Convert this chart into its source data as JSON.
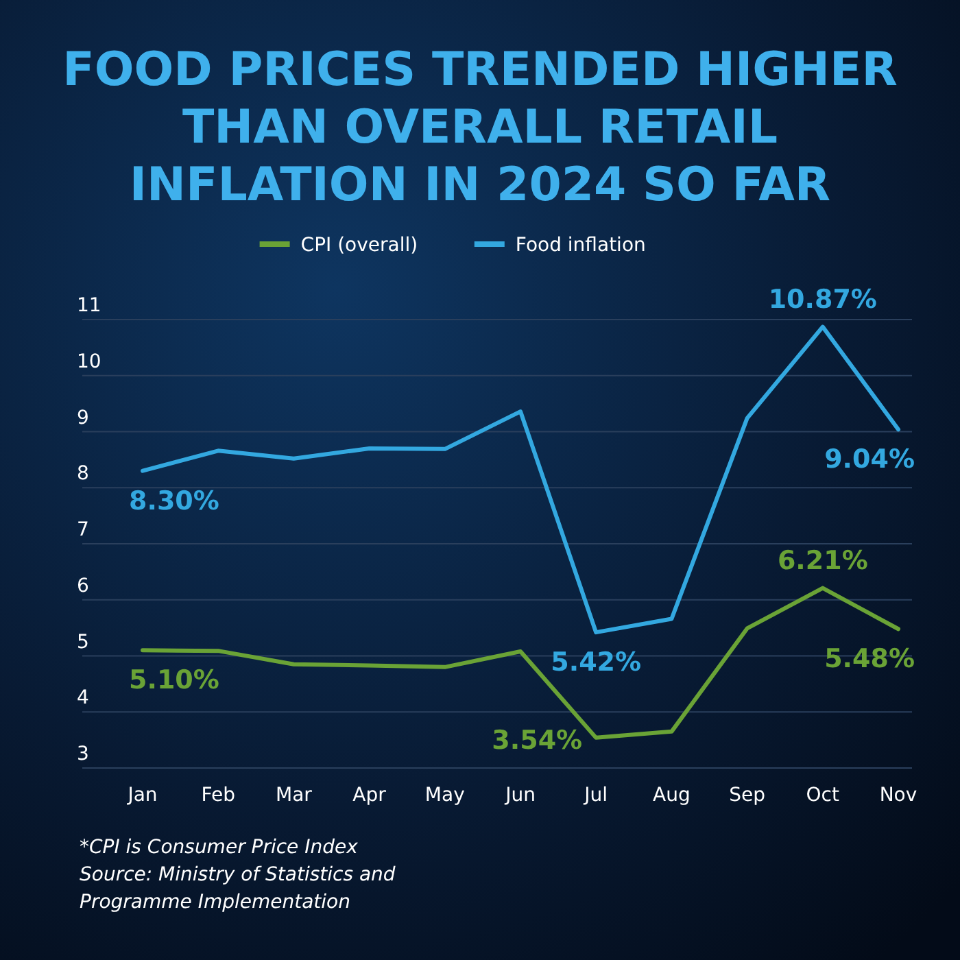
{
  "chart_data": {
    "type": "line",
    "title": "FOOD PRICES TRENDED HIGHER THAN OVERALL RETAIL INFLATION IN 2024 SO FAR",
    "categories": [
      "Jan",
      "Feb",
      "Mar",
      "Apr",
      "May",
      "Jun",
      "Jul",
      "Aug",
      "Sep",
      "Oct",
      "Nov"
    ],
    "series": [
      {
        "name": "CPI (overall)",
        "color": "#6aa336",
        "values": [
          5.1,
          5.09,
          4.85,
          4.83,
          4.8,
          5.08,
          3.54,
          3.65,
          5.49,
          6.21,
          5.48
        ],
        "value_labels": [
          "5.10%",
          null,
          null,
          null,
          null,
          null,
          "3.54%",
          null,
          null,
          "6.21%",
          "5.48%"
        ]
      },
      {
        "name": "Food inflation",
        "color": "#33a8e0",
        "values": [
          8.3,
          8.66,
          8.52,
          8.7,
          8.69,
          9.36,
          5.42,
          5.66,
          9.24,
          10.87,
          9.04
        ],
        "value_labels": [
          "8.30%",
          null,
          null,
          null,
          null,
          null,
          "5.42%",
          null,
          null,
          "10.87%",
          "9.04%"
        ]
      }
    ],
    "ylim": [
      3,
      11
    ],
    "yticks": [
      3,
      4,
      5,
      6,
      7,
      8,
      9,
      10,
      11
    ],
    "grid": "y",
    "legend": "top",
    "marker": "none",
    "line_style": "solid",
    "annotations": [
      "*CPI is Consumer Price Index",
      "Source: Ministry of Statistics and Programme Implementation"
    ]
  }
}
